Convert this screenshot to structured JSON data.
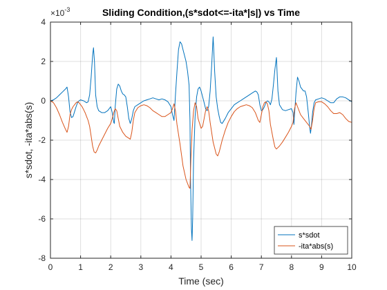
{
  "chart_data": {
    "type": "line",
    "title": "Sliding Condition,(s*sdot<=-ita*|s|) vs Time",
    "xlabel": "Time (sec)",
    "ylabel": "s*sdot, -ita*abs(s)",
    "y_exponent_label": "×10",
    "y_exponent_power": "-3",
    "xlim": [
      0,
      10
    ],
    "ylim": [
      -8,
      4
    ],
    "xticks": [
      "0",
      "1",
      "2",
      "3",
      "4",
      "5",
      "6",
      "7",
      "8",
      "9",
      "10"
    ],
    "yticks": [
      "-8",
      "-6",
      "-4",
      "-2",
      "0",
      "2",
      "4"
    ],
    "grid": true,
    "legend_position": "bottom-right",
    "series": [
      {
        "name": "s*sdot",
        "color": "#0072BD",
        "points": [
          [
            0,
            0
          ],
          [
            0.1,
            0.05
          ],
          [
            0.2,
            0.15
          ],
          [
            0.3,
            0.3
          ],
          [
            0.4,
            0.45
          ],
          [
            0.5,
            0.6
          ],
          [
            0.55,
            0.7
          ],
          [
            0.6,
            0.2
          ],
          [
            0.65,
            -0.55
          ],
          [
            0.7,
            -0.85
          ],
          [
            0.75,
            -0.8
          ],
          [
            0.8,
            -0.55
          ],
          [
            0.85,
            -0.3
          ],
          [
            0.9,
            -0.1
          ],
          [
            0.95,
            0.0
          ],
          [
            1.0,
            0.05
          ],
          [
            1.1,
            0.0
          ],
          [
            1.2,
            -0.1
          ],
          [
            1.25,
            -0.05
          ],
          [
            1.3,
            0.3
          ],
          [
            1.35,
            1.2
          ],
          [
            1.4,
            2.3
          ],
          [
            1.43,
            2.7
          ],
          [
            1.46,
            2.0
          ],
          [
            1.5,
            0.3
          ],
          [
            1.55,
            -0.3
          ],
          [
            1.6,
            -0.5
          ],
          [
            1.7,
            -0.6
          ],
          [
            1.8,
            -0.6
          ],
          [
            1.9,
            -0.5
          ],
          [
            1.95,
            -0.4
          ],
          [
            2.0,
            -0.3
          ],
          [
            2.05,
            -0.6
          ],
          [
            2.1,
            -1.1
          ],
          [
            2.12,
            -1.15
          ],
          [
            2.15,
            -0.3
          ],
          [
            2.2,
            0.6
          ],
          [
            2.25,
            0.85
          ],
          [
            2.3,
            0.75
          ],
          [
            2.35,
            0.5
          ],
          [
            2.4,
            0.35
          ],
          [
            2.45,
            0.3
          ],
          [
            2.5,
            0.2
          ],
          [
            2.55,
            -0.3
          ],
          [
            2.6,
            -0.9
          ],
          [
            2.65,
            -1.15
          ],
          [
            2.7,
            -0.9
          ],
          [
            2.75,
            -0.5
          ],
          [
            2.8,
            -0.3
          ],
          [
            2.9,
            -0.2
          ],
          [
            3.0,
            -0.1
          ],
          [
            3.1,
            0.0
          ],
          [
            3.2,
            0.05
          ],
          [
            3.3,
            0.1
          ],
          [
            3.4,
            0.15
          ],
          [
            3.5,
            0.1
          ],
          [
            3.6,
            0.05
          ],
          [
            3.7,
            0.1
          ],
          [
            3.8,
            0.05
          ],
          [
            3.9,
            -0.05
          ],
          [
            4.0,
            -0.3
          ],
          [
            4.05,
            -0.7
          ],
          [
            4.1,
            -1.0
          ],
          [
            4.12,
            -0.5
          ],
          [
            4.15,
            0.3
          ],
          [
            4.2,
            1.5
          ],
          [
            4.25,
            2.6
          ],
          [
            4.3,
            3.0
          ],
          [
            4.35,
            2.9
          ],
          [
            4.4,
            2.6
          ],
          [
            4.45,
            2.3
          ],
          [
            4.5,
            2.0
          ],
          [
            4.55,
            1.5
          ],
          [
            4.6,
            0.8
          ],
          [
            4.63,
            -1.0
          ],
          [
            4.65,
            -4.0
          ],
          [
            4.68,
            -6.5
          ],
          [
            4.7,
            -7.1
          ],
          [
            4.72,
            -6.0
          ],
          [
            4.75,
            -3.0
          ],
          [
            4.8,
            -0.8
          ],
          [
            4.85,
            0.2
          ],
          [
            4.9,
            0.6
          ],
          [
            4.95,
            0.7
          ],
          [
            5.0,
            0.5
          ],
          [
            5.05,
            0.2
          ],
          [
            5.1,
            -0.1
          ],
          [
            5.15,
            -0.4
          ],
          [
            5.2,
            -0.5
          ],
          [
            5.25,
            -0.3
          ],
          [
            5.3,
            0.5
          ],
          [
            5.35,
            1.8
          ],
          [
            5.4,
            3.25
          ],
          [
            5.42,
            2.6
          ],
          [
            5.45,
            1.5
          ],
          [
            5.5,
            0.2
          ],
          [
            5.55,
            -0.4
          ],
          [
            5.6,
            -0.8
          ],
          [
            5.65,
            -1.1
          ],
          [
            5.7,
            -1.15
          ],
          [
            5.8,
            -0.9
          ],
          [
            5.9,
            -0.6
          ],
          [
            6.0,
            -0.4
          ],
          [
            6.1,
            -0.2
          ],
          [
            6.2,
            -0.1
          ],
          [
            6.3,
            0.0
          ],
          [
            6.4,
            0.1
          ],
          [
            6.5,
            0.2
          ],
          [
            6.6,
            0.3
          ],
          [
            6.7,
            0.4
          ],
          [
            6.8,
            0.5
          ],
          [
            6.85,
            0.45
          ],
          [
            6.9,
            0.3
          ],
          [
            6.95,
            -0.2
          ],
          [
            7.0,
            -0.5
          ],
          [
            7.05,
            -0.45
          ],
          [
            7.1,
            -0.3
          ],
          [
            7.15,
            -0.1
          ],
          [
            7.2,
            0.0
          ],
          [
            7.25,
            -0.05
          ],
          [
            7.3,
            -0.2
          ],
          [
            7.35,
            0.1
          ],
          [
            7.4,
            0.8
          ],
          [
            7.45,
            1.6
          ],
          [
            7.5,
            2.2
          ],
          [
            7.52,
            1.5
          ],
          [
            7.55,
            0.5
          ],
          [
            7.6,
            -0.2
          ],
          [
            7.7,
            -0.45
          ],
          [
            7.8,
            -0.5
          ],
          [
            7.9,
            -0.45
          ],
          [
            8.0,
            -0.4
          ],
          [
            8.05,
            -0.6
          ],
          [
            8.08,
            -1.2
          ],
          [
            8.1,
            -0.7
          ],
          [
            8.15,
            0.4
          ],
          [
            8.2,
            1.2
          ],
          [
            8.25,
            1.0
          ],
          [
            8.3,
            0.7
          ],
          [
            8.4,
            0.5
          ],
          [
            8.45,
            0.5
          ],
          [
            8.5,
            0.2
          ],
          [
            8.55,
            -0.5
          ],
          [
            8.6,
            -1.3
          ],
          [
            8.63,
            -1.65
          ],
          [
            8.66,
            -1.3
          ],
          [
            8.7,
            -0.6
          ],
          [
            8.75,
            -0.1
          ],
          [
            8.8,
            0.05
          ],
          [
            8.9,
            0.1
          ],
          [
            9.0,
            0.15
          ],
          [
            9.1,
            0.1
          ],
          [
            9.2,
            0.0
          ],
          [
            9.3,
            -0.1
          ],
          [
            9.4,
            -0.1
          ],
          [
            9.5,
            0.1
          ],
          [
            9.6,
            0.2
          ],
          [
            9.7,
            0.2
          ],
          [
            9.8,
            0.15
          ],
          [
            9.9,
            0.05
          ],
          [
            10.0,
            -0.05
          ]
        ]
      },
      {
        "name": "-ita*abs(s)",
        "color": "#D95319",
        "points": [
          [
            0,
            0
          ],
          [
            0.1,
            -0.1
          ],
          [
            0.2,
            -0.35
          ],
          [
            0.3,
            -0.7
          ],
          [
            0.4,
            -1.1
          ],
          [
            0.5,
            -1.45
          ],
          [
            0.55,
            -1.6
          ],
          [
            0.6,
            -1.3
          ],
          [
            0.65,
            -0.7
          ],
          [
            0.7,
            -0.45
          ],
          [
            0.75,
            -0.3
          ],
          [
            0.8,
            -0.2
          ],
          [
            0.85,
            -0.1
          ],
          [
            0.9,
            -0.05
          ],
          [
            0.95,
            -0.1
          ],
          [
            1.0,
            -0.2
          ],
          [
            1.05,
            -0.3
          ],
          [
            1.1,
            -0.45
          ],
          [
            1.15,
            -0.6
          ],
          [
            1.2,
            -0.8
          ],
          [
            1.25,
            -1.0
          ],
          [
            1.3,
            -1.3
          ],
          [
            1.35,
            -1.8
          ],
          [
            1.4,
            -2.3
          ],
          [
            1.45,
            -2.6
          ],
          [
            1.5,
            -2.65
          ],
          [
            1.55,
            -2.5
          ],
          [
            1.6,
            -2.3
          ],
          [
            1.7,
            -2.0
          ],
          [
            1.8,
            -1.7
          ],
          [
            1.9,
            -1.4
          ],
          [
            2.0,
            -1.15
          ],
          [
            2.05,
            -0.9
          ],
          [
            2.1,
            -0.6
          ],
          [
            2.15,
            -0.4
          ],
          [
            2.2,
            -0.5
          ],
          [
            2.25,
            -0.9
          ],
          [
            2.3,
            -1.3
          ],
          [
            2.4,
            -1.6
          ],
          [
            2.5,
            -1.8
          ],
          [
            2.6,
            -1.9
          ],
          [
            2.65,
            -1.95
          ],
          [
            2.7,
            -1.6
          ],
          [
            2.75,
            -1.0
          ],
          [
            2.8,
            -0.6
          ],
          [
            2.9,
            -0.35
          ],
          [
            3.0,
            -0.25
          ],
          [
            3.1,
            -0.2
          ],
          [
            3.2,
            -0.25
          ],
          [
            3.3,
            -0.35
          ],
          [
            3.4,
            -0.5
          ],
          [
            3.5,
            -0.6
          ],
          [
            3.6,
            -0.7
          ],
          [
            3.7,
            -0.8
          ],
          [
            3.8,
            -0.8
          ],
          [
            3.9,
            -0.7
          ],
          [
            4.0,
            -0.6
          ],
          [
            4.05,
            -0.4
          ],
          [
            4.1,
            -0.15
          ],
          [
            4.15,
            -0.5
          ],
          [
            4.2,
            -1.2
          ],
          [
            4.3,
            -2.2
          ],
          [
            4.4,
            -3.3
          ],
          [
            4.5,
            -4.0
          ],
          [
            4.6,
            -4.4
          ],
          [
            4.63,
            -4.45
          ],
          [
            4.66,
            -3.0
          ],
          [
            4.7,
            -1.5
          ],
          [
            4.75,
            -0.5
          ],
          [
            4.8,
            -0.1
          ],
          [
            4.85,
            -0.3
          ],
          [
            4.9,
            -0.9
          ],
          [
            5.0,
            -1.4
          ],
          [
            5.05,
            -1.3
          ],
          [
            5.1,
            -0.9
          ],
          [
            5.15,
            -0.5
          ],
          [
            5.2,
            -0.3
          ],
          [
            5.25,
            -0.5
          ],
          [
            5.3,
            -1.1
          ],
          [
            5.4,
            -2.1
          ],
          [
            5.5,
            -2.7
          ],
          [
            5.55,
            -2.8
          ],
          [
            5.6,
            -2.6
          ],
          [
            5.7,
            -2.0
          ],
          [
            5.8,
            -1.5
          ],
          [
            5.9,
            -1.1
          ],
          [
            6.0,
            -0.8
          ],
          [
            6.1,
            -0.55
          ],
          [
            6.2,
            -0.4
          ],
          [
            6.3,
            -0.3
          ],
          [
            6.4,
            -0.25
          ],
          [
            6.5,
            -0.2
          ],
          [
            6.6,
            -0.25
          ],
          [
            6.7,
            -0.35
          ],
          [
            6.8,
            -0.6
          ],
          [
            6.9,
            -1.0
          ],
          [
            6.95,
            -1.1
          ],
          [
            7.0,
            -0.7
          ],
          [
            7.05,
            -0.3
          ],
          [
            7.1,
            -0.1
          ],
          [
            7.15,
            -0.05
          ],
          [
            7.2,
            -0.15
          ],
          [
            7.25,
            -0.5
          ],
          [
            7.3,
            -1.2
          ],
          [
            7.4,
            -2.0
          ],
          [
            7.45,
            -2.35
          ],
          [
            7.5,
            -2.45
          ],
          [
            7.6,
            -2.3
          ],
          [
            7.7,
            -2.1
          ],
          [
            7.8,
            -1.85
          ],
          [
            7.9,
            -1.6
          ],
          [
            8.0,
            -1.3
          ],
          [
            8.05,
            -1.1
          ],
          [
            8.1,
            -0.4
          ],
          [
            8.15,
            -0.1
          ],
          [
            8.2,
            -0.3
          ],
          [
            8.3,
            -0.7
          ],
          [
            8.4,
            -0.9
          ],
          [
            8.5,
            -1.1
          ],
          [
            8.6,
            -1.3
          ],
          [
            8.65,
            -1.45
          ],
          [
            8.7,
            -1.0
          ],
          [
            8.75,
            -0.4
          ],
          [
            8.8,
            -0.1
          ],
          [
            8.9,
            -0.05
          ],
          [
            9.0,
            -0.05
          ],
          [
            9.1,
            -0.15
          ],
          [
            9.2,
            -0.3
          ],
          [
            9.3,
            -0.5
          ],
          [
            9.4,
            -0.65
          ],
          [
            9.5,
            -0.65
          ],
          [
            9.6,
            -0.6
          ],
          [
            9.7,
            -0.7
          ],
          [
            9.8,
            -0.9
          ],
          [
            9.9,
            -1.05
          ],
          [
            10.0,
            -1.1
          ]
        ]
      }
    ]
  }
}
